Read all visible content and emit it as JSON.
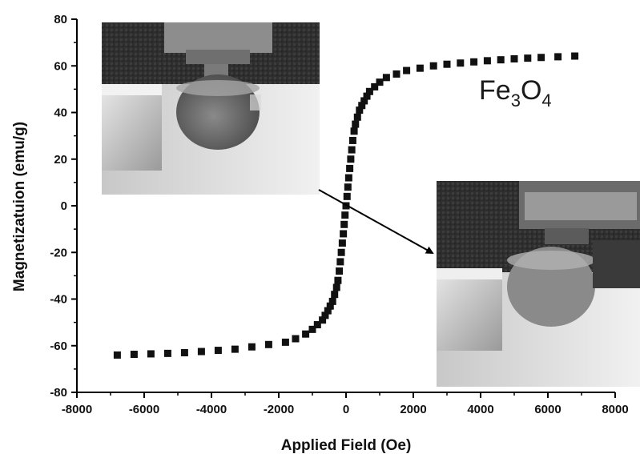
{
  "chart_data": {
    "type": "scatter",
    "xlabel": "Applied Field (Oe)",
    "ylabel": "Magnetizatuion (emu/g)",
    "annotation": {
      "base": "Fe",
      "sub1": "3",
      "mid": "O",
      "sub2": "4"
    },
    "xlim": [
      -8000,
      8000
    ],
    "ylim": [
      -80,
      80
    ],
    "xticks": [
      "-8000",
      "-6000",
      "-4000",
      "-2000",
      "0",
      "2000",
      "4000",
      "6000",
      "8000"
    ],
    "yticks": [
      "80",
      "60",
      "40",
      "20",
      "0",
      "-20",
      "-40",
      "-60",
      "-80"
    ],
    "grid": false,
    "marker": "square",
    "colors": {
      "marker": "#111111",
      "axis": "#000000",
      "arrow": "#000000"
    },
    "series": [
      {
        "points": [
          [
            -6800,
            -64
          ],
          [
            -6300,
            -63.7
          ],
          [
            -5800,
            -63.5
          ],
          [
            -5300,
            -63.3
          ],
          [
            -4800,
            -63
          ],
          [
            -4300,
            -62.5
          ],
          [
            -3800,
            -62
          ],
          [
            -3300,
            -61.5
          ],
          [
            -2800,
            -60.5
          ],
          [
            -2300,
            -59.5
          ],
          [
            -1800,
            -58.5
          ],
          [
            -1500,
            -57
          ],
          [
            -1200,
            -55
          ],
          [
            -1000,
            -53
          ],
          [
            -850,
            -51
          ],
          [
            -700,
            -49
          ],
          [
            -620,
            -47
          ],
          [
            -540,
            -45
          ],
          [
            -470,
            -43
          ],
          [
            -400,
            -41
          ],
          [
            -340,
            -38
          ],
          [
            -280,
            -35
          ],
          [
            -240,
            -32
          ],
          [
            -200,
            -28
          ],
          [
            -170,
            -24
          ],
          [
            -140,
            -20
          ],
          [
            -110,
            -16
          ],
          [
            -80,
            -12
          ],
          [
            -55,
            -8
          ],
          [
            -30,
            -4
          ],
          [
            0,
            0
          ],
          [
            30,
            4
          ],
          [
            55,
            8
          ],
          [
            80,
            12
          ],
          [
            110,
            16
          ],
          [
            140,
            20
          ],
          [
            170,
            24
          ],
          [
            200,
            28
          ],
          [
            240,
            32
          ],
          [
            280,
            35
          ],
          [
            340,
            38
          ],
          [
            400,
            41
          ],
          [
            470,
            43
          ],
          [
            540,
            45
          ],
          [
            620,
            47
          ],
          [
            700,
            49
          ],
          [
            850,
            51
          ],
          [
            1000,
            53
          ],
          [
            1200,
            55
          ],
          [
            1500,
            56.5
          ],
          [
            1800,
            58
          ],
          [
            2200,
            59
          ],
          [
            2600,
            60
          ],
          [
            3000,
            60.7
          ],
          [
            3400,
            61.2
          ],
          [
            3800,
            61.7
          ],
          [
            4200,
            62.2
          ],
          [
            4600,
            62.6
          ],
          [
            5000,
            63
          ],
          [
            5400,
            63.3
          ],
          [
            5800,
            63.6
          ],
          [
            6300,
            63.9
          ],
          [
            6800,
            64.2
          ]
        ]
      }
    ]
  },
  "insets": [
    {
      "name": "inset-photo-left"
    },
    {
      "name": "inset-photo-right"
    }
  ]
}
